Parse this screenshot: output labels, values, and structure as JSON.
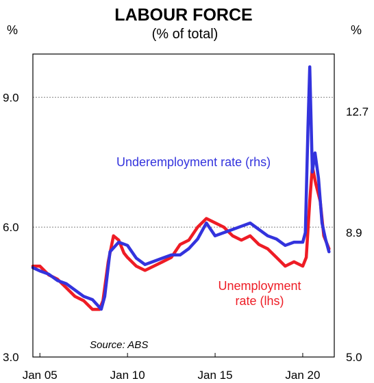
{
  "chart_data": {
    "type": "line",
    "title": "LABOUR FORCE",
    "subtitle": "(% of total)",
    "left_unit": "%",
    "right_unit": "%",
    "source": "Source: ABS",
    "x_ticks": [
      "Jan 05",
      "Jan 10",
      "Jan 15",
      "Jan 20"
    ],
    "x_tick_years": [
      2005,
      2010,
      2015,
      2020
    ],
    "xlim": [
      2004.6,
      2021.8
    ],
    "y_left": {
      "ylim": [
        3.0,
        10.0
      ],
      "ticks": [
        "3.0",
        "6.0",
        "9.0"
      ],
      "tick_values": [
        3.0,
        6.0,
        9.0
      ]
    },
    "y_right": {
      "ylim": [
        5.0,
        14.5
      ],
      "ticks": [
        "5.0",
        "8.9",
        "12.7"
      ],
      "tick_values": [
        5.0,
        8.9,
        12.7
      ]
    },
    "gridlines_at_left": [
      6.0,
      9.0
    ],
    "colors": {
      "unemployment": "#ee1c25",
      "underemployment": "#3333dd",
      "grid": "#808080"
    },
    "series": [
      {
        "name": "Unemployment rate (lhs)",
        "label_lines": [
          "Unemployment",
          "rate (lhs)"
        ],
        "axis": "left",
        "color": "#ee1c25",
        "x": [
          2004.6,
          2005.0,
          2005.5,
          2006.0,
          2006.5,
          2007.0,
          2007.5,
          2008.0,
          2008.4,
          2008.6,
          2008.9,
          2009.2,
          2009.5,
          2009.8,
          2010.0,
          2010.5,
          2011.0,
          2011.5,
          2012.0,
          2012.5,
          2013.0,
          2013.5,
          2014.0,
          2014.5,
          2015.0,
          2015.5,
          2016.0,
          2016.5,
          2017.0,
          2017.5,
          2018.0,
          2018.5,
          2019.0,
          2019.5,
          2020.0,
          2020.2,
          2020.4,
          2020.55,
          2020.75,
          2021.0,
          2021.2,
          2021.4,
          2021.5
        ],
        "values": [
          5.1,
          5.1,
          4.9,
          4.8,
          4.6,
          4.4,
          4.3,
          4.1,
          4.1,
          4.3,
          5.2,
          5.8,
          5.7,
          5.4,
          5.3,
          5.1,
          5.0,
          5.1,
          5.2,
          5.3,
          5.6,
          5.7,
          6.0,
          6.2,
          6.1,
          6.0,
          5.8,
          5.7,
          5.8,
          5.6,
          5.5,
          5.3,
          5.1,
          5.2,
          5.1,
          5.3,
          6.6,
          7.4,
          7.0,
          6.6,
          5.8,
          5.6,
          5.5
        ]
      },
      {
        "name": "Underemployment rate (rhs)",
        "label_lines": [
          "Underemployment rate (rhs)"
        ],
        "axis": "right",
        "color": "#3333dd",
        "x": [
          2004.6,
          2005.0,
          2005.5,
          2006.0,
          2006.5,
          2007.0,
          2007.5,
          2008.0,
          2008.5,
          2008.7,
          2009.0,
          2009.5,
          2010.0,
          2010.5,
          2011.0,
          2011.5,
          2012.0,
          2012.5,
          2013.0,
          2013.5,
          2014.0,
          2014.5,
          2015.0,
          2015.5,
          2016.0,
          2016.5,
          2017.0,
          2017.5,
          2018.0,
          2018.5,
          2019.0,
          2019.5,
          2020.0,
          2020.15,
          2020.3,
          2020.4,
          2020.55,
          2020.7,
          2020.9,
          2021.1,
          2021.3,
          2021.5
        ],
        "values": [
          7.8,
          7.7,
          7.6,
          7.4,
          7.3,
          7.1,
          6.9,
          6.8,
          6.5,
          6.9,
          8.3,
          8.6,
          8.5,
          8.1,
          7.9,
          8.0,
          8.1,
          8.2,
          8.2,
          8.4,
          8.7,
          9.2,
          8.8,
          8.9,
          9.0,
          9.1,
          9.2,
          9.0,
          8.8,
          8.7,
          8.5,
          8.6,
          8.6,
          8.9,
          12.2,
          14.1,
          10.8,
          11.4,
          10.6,
          9.2,
          8.7,
          8.3
        ]
      }
    ]
  }
}
